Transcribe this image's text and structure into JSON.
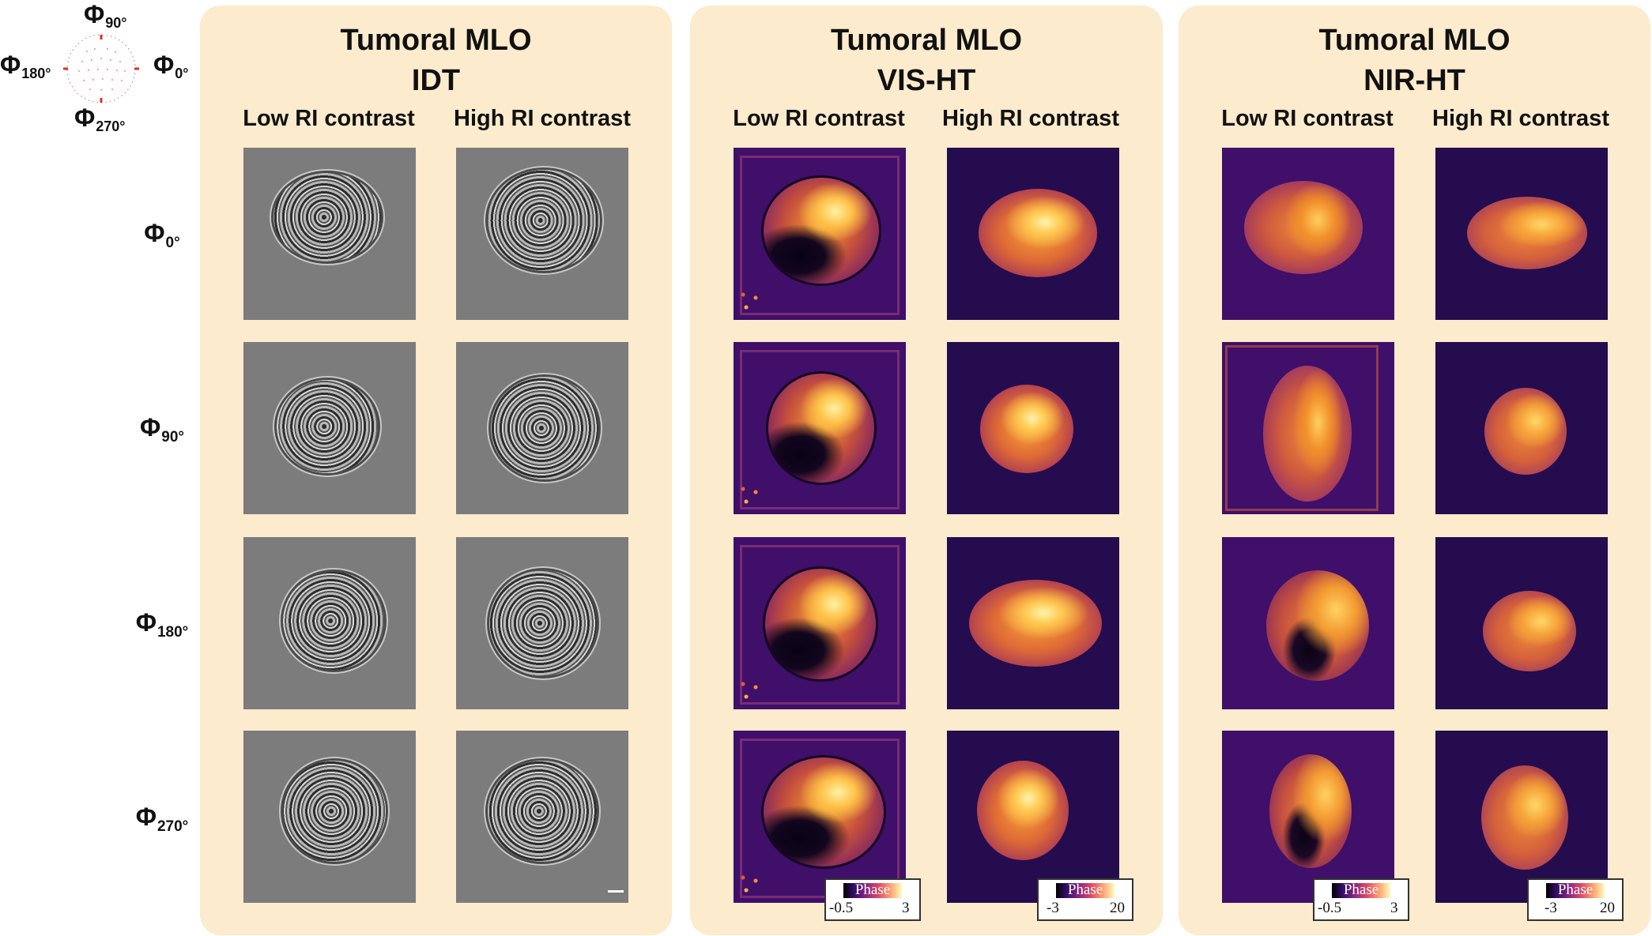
{
  "compass": {
    "top": "Φ",
    "top_sub": "90°",
    "left": "Φ",
    "left_sub": "180°",
    "right": "Φ",
    "right_sub": "0°",
    "bottom": "Φ",
    "bottom_sub": "270°"
  },
  "rows": [
    {
      "sym": "Φ",
      "sub": "0°"
    },
    {
      "sym": "Φ",
      "sub": "90°"
    },
    {
      "sym": "Φ",
      "sub": "180°"
    },
    {
      "sym": "Φ",
      "sub": "270°"
    }
  ],
  "panels": [
    {
      "title1": "Tumoral MLO",
      "title2": "IDT",
      "col_low": "Low RI contrast",
      "col_high": "High RI contrast"
    },
    {
      "title1": "Tumoral MLO",
      "title2": "VIS-HT",
      "col_low": "Low RI contrast",
      "col_high": "High RI contrast"
    },
    {
      "title1": "Tumoral MLO",
      "title2": "NIR-HT",
      "col_low": "Low RI contrast",
      "col_high": "High RI contrast"
    }
  ],
  "colorbars": [
    {
      "label": "Phase",
      "min": "-0.5",
      "max": "3"
    },
    {
      "label": "Phase",
      "min": "-3",
      "max": "20"
    },
    {
      "label": "Phase",
      "min": "-0.5",
      "max": "3"
    },
    {
      "label": "Phase",
      "min": "-3",
      "max": "20"
    }
  ],
  "colors": {
    "panel_bg": "#fcebcd",
    "compass_tick": "#e0301e",
    "colormap": [
      "#000004",
      "#3b0f70",
      "#8c2981",
      "#de4968",
      "#fe9f6d",
      "#fcfdbf"
    ]
  }
}
